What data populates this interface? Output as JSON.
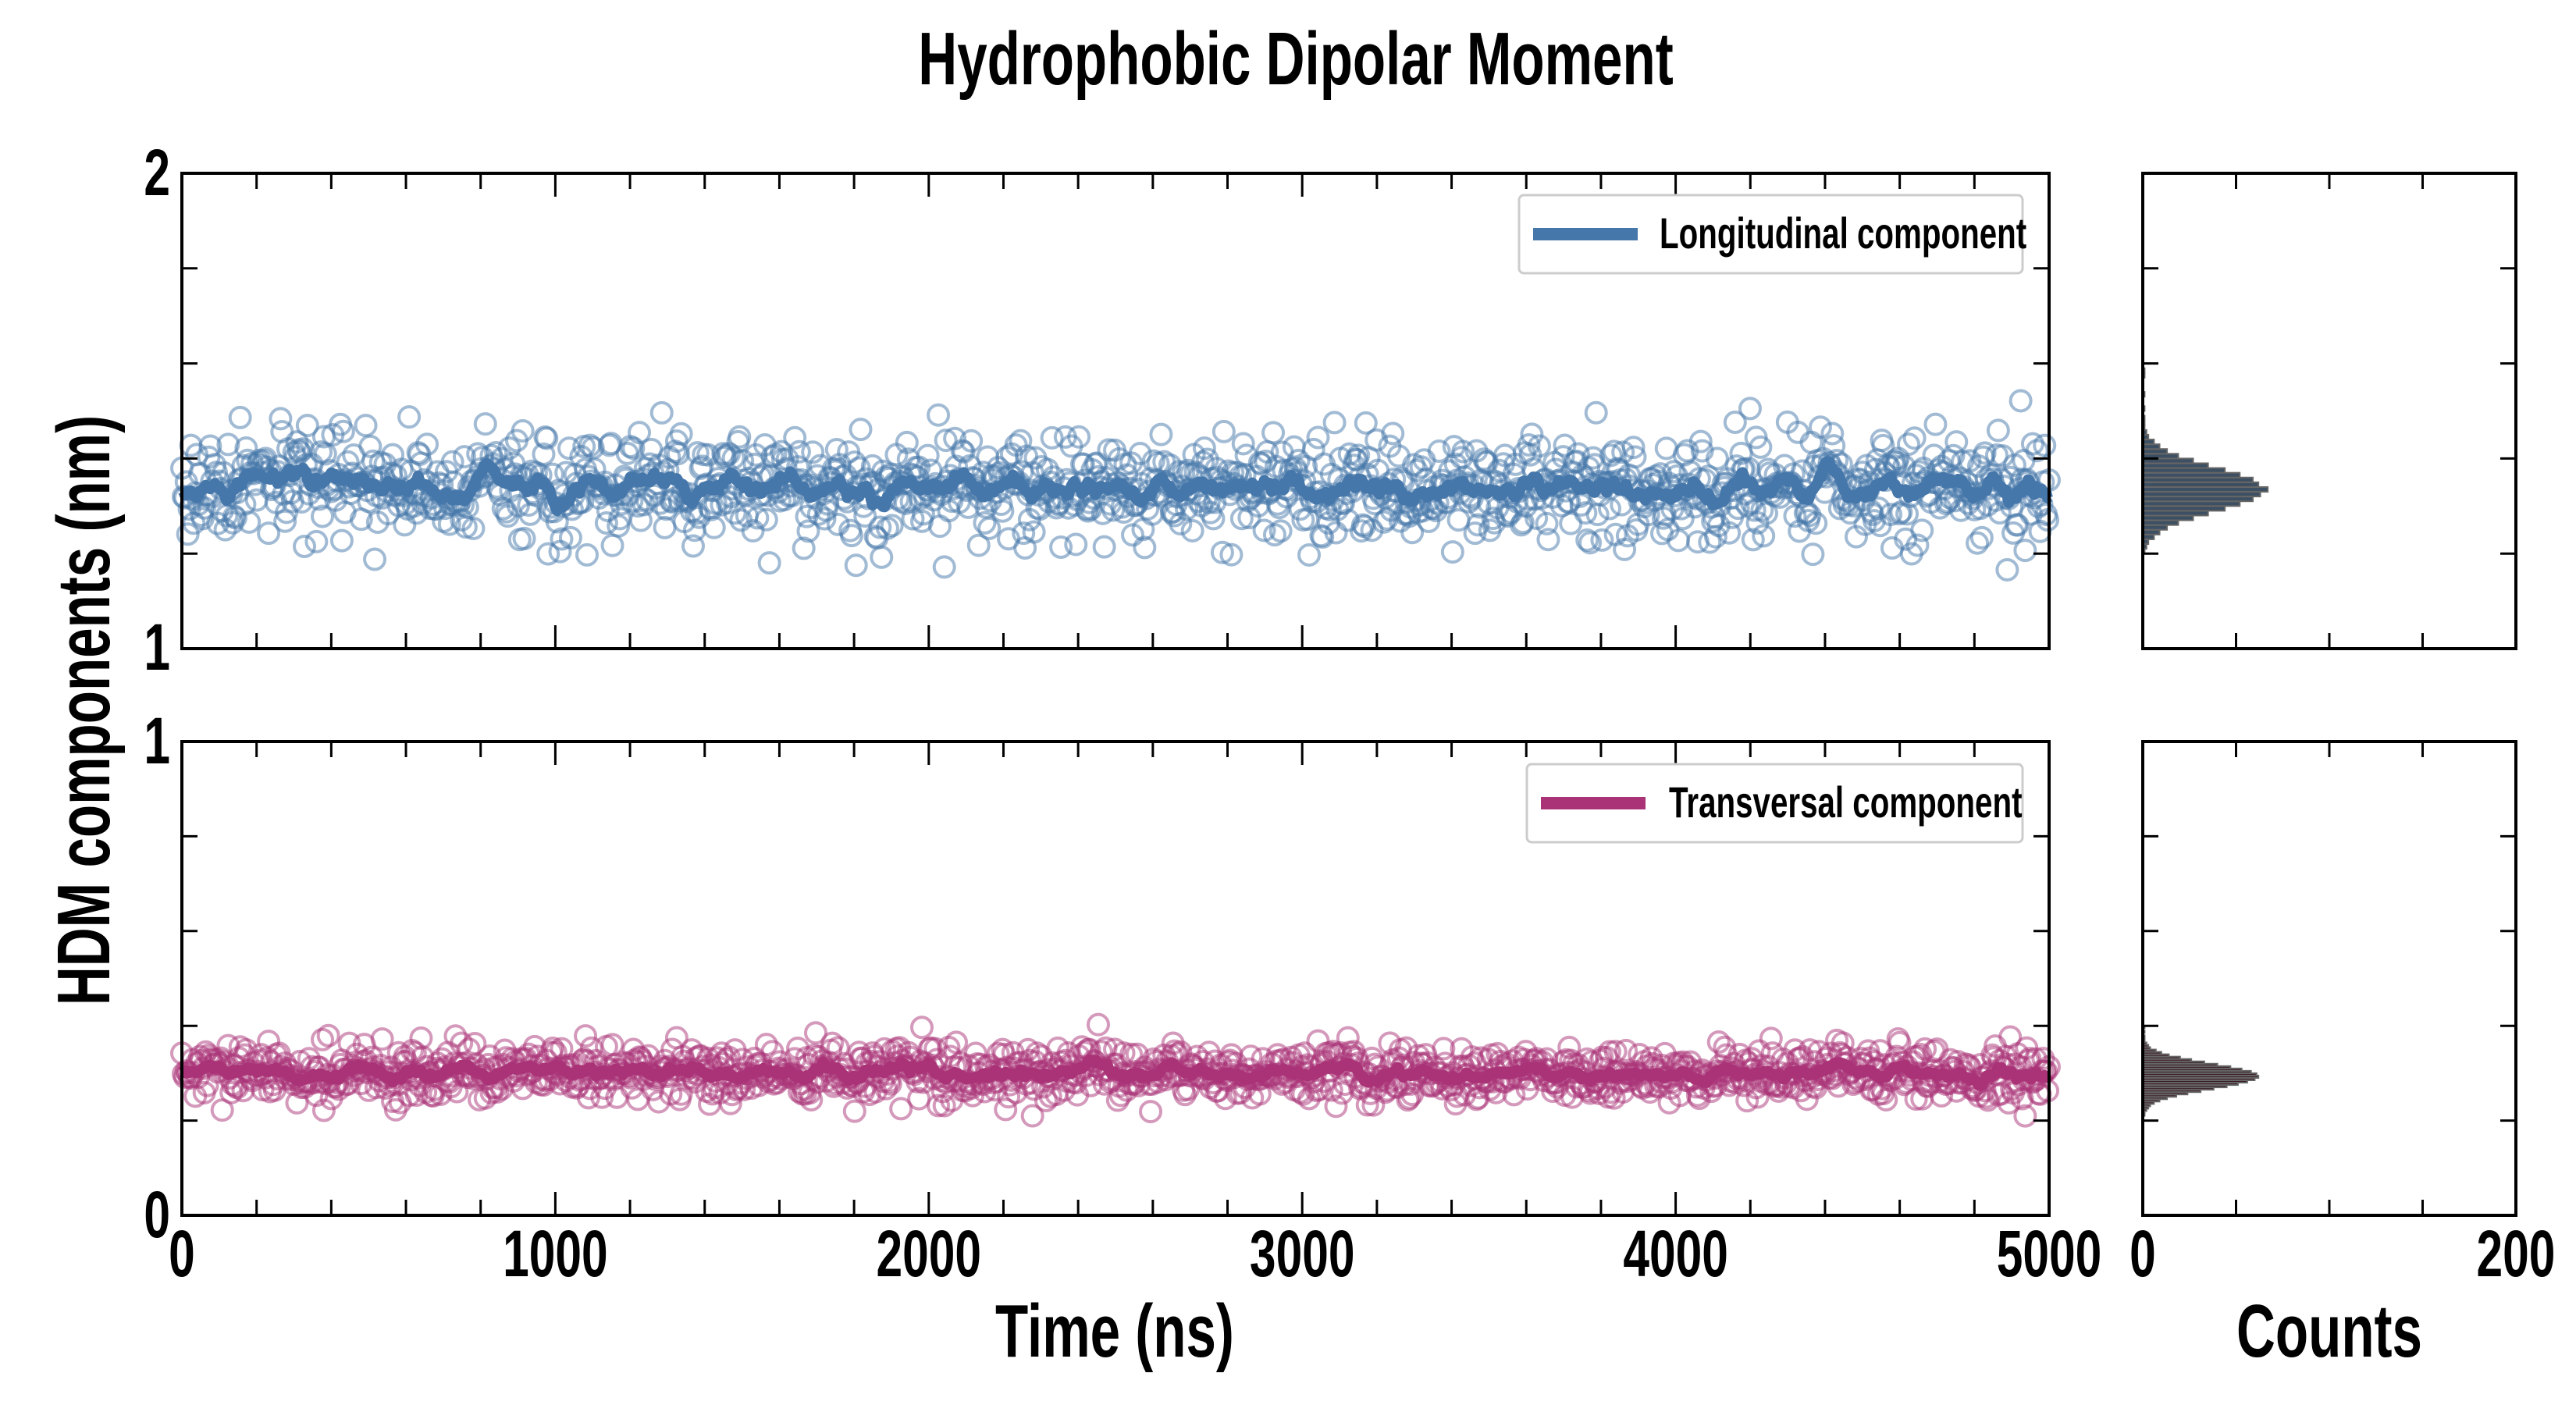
{
  "chart_data": [
    {
      "type": "scatter",
      "panel": "time-series-top",
      "title": "Hydrophobic Dipolar Moment",
      "xlabel": "",
      "ylabel": "HDM components (nm)",
      "xlim": [
        0,
        5000
      ],
      "ylim": [
        1,
        2
      ],
      "xticks": [
        "0",
        "1000",
        "2000",
        "3000",
        "4000",
        "5000"
      ],
      "yticks": [
        "1",
        "2"
      ],
      "legend": {
        "label": "Longitudinal component",
        "placement": "top-right"
      },
      "color": "#4677aa",
      "series": {
        "name": "Longitudinal component",
        "n_points": 1250,
        "mean": 1.34,
        "std": 0.055,
        "running_mean_window": 6,
        "seed": 17
      }
    },
    {
      "type": "scatter",
      "panel": "time-series-bottom",
      "xlabel": "Time (ns)",
      "xlim": [
        0,
        5000
      ],
      "ylim": [
        0,
        1
      ],
      "xticks": [
        "0",
        "1000",
        "2000",
        "3000",
        "4000",
        "5000"
      ],
      "yticks": [
        "0",
        "1"
      ],
      "legend": {
        "label": "Transversal component",
        "placement": "top-right"
      },
      "color": "#aa3377",
      "series": {
        "name": "Transversal component",
        "n_points": 1250,
        "mean": 0.3,
        "std": 0.03,
        "running_mean_window": 6,
        "seed": 29
      }
    },
    {
      "type": "bar",
      "panel": "histogram-top",
      "orientation": "horizontal",
      "xlim": [
        0,
        200
      ],
      "ylim": [
        1,
        2
      ],
      "bin_start": 1.2,
      "bin_width": 0.01,
      "counts": [
        1,
        2,
        3,
        6,
        9,
        13,
        19,
        27,
        35,
        44,
        52,
        59,
        63,
        67,
        62,
        59,
        52,
        44,
        35,
        27,
        19,
        13,
        9,
        6,
        3,
        2,
        1,
        1,
        1,
        0,
        1,
        0,
        0,
        1,
        0,
        0,
        0,
        1,
        1,
        0
      ],
      "color": "#4677aa"
    },
    {
      "type": "bar",
      "panel": "histogram-bottom",
      "orientation": "horizontal",
      "xlabel": "Counts",
      "xlim": [
        0,
        200
      ],
      "ylim": [
        0,
        1
      ],
      "xticks": [
        "0",
        "200"
      ],
      "bin_start": 0.21,
      "bin_width": 0.005,
      "counts": [
        1,
        1,
        2,
        3,
        4,
        6,
        9,
        13,
        18,
        24,
        31,
        38,
        45,
        51,
        56,
        60,
        62,
        61,
        58,
        53,
        47,
        40,
        33,
        26,
        20,
        14,
        10,
        7,
        4,
        3,
        2,
        1,
        1,
        1,
        0,
        1,
        0,
        1
      ],
      "color": "#aa3377"
    }
  ],
  "title": "Hydrophobic Dipolar Moment",
  "ylabel": "HDM components (nm)",
  "xlabel": "Time (ns)",
  "hist_xlabel": "Counts",
  "top": {
    "ytick_top": "2",
    "ytick_bottom": "1",
    "legend": "Longitudinal component"
  },
  "bottom": {
    "ytick_top": "1",
    "ytick_bottom": "0",
    "legend": "Transversal component"
  },
  "xticks": [
    "0",
    "1000",
    "2000",
    "3000",
    "4000",
    "5000"
  ],
  "hist_xticks": [
    "0",
    "200"
  ]
}
